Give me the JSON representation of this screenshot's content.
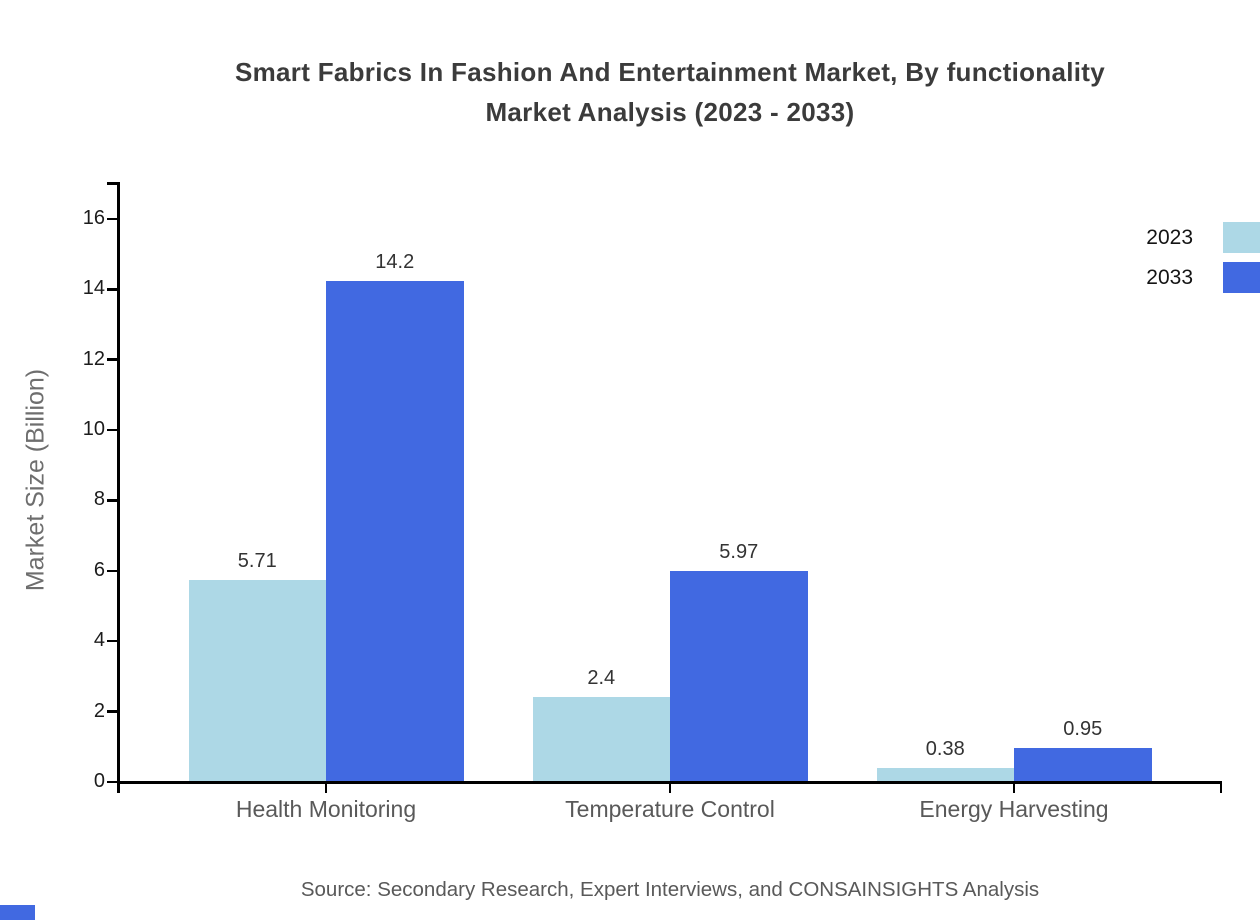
{
  "title": {
    "line1": "Smart Fabrics In Fashion And Entertainment Market, By functionality",
    "line2": "Market Analysis (2023 - 2033)"
  },
  "chart_data": {
    "type": "bar",
    "categories": [
      "Health Monitoring",
      "Temperature Control",
      "Energy Harvesting"
    ],
    "series": [
      {
        "name": "2023",
        "color": "#add8e6",
        "values": [
          5.71,
          2.4,
          0.38
        ],
        "labels": [
          "5.71",
          "2.4",
          "0.38"
        ]
      },
      {
        "name": "2033",
        "color": "#4169e1",
        "values": [
          14.2,
          5.97,
          0.95
        ],
        "labels": [
          "14.2",
          "5.97",
          "0.95"
        ]
      }
    ],
    "ylabel": "Market Size (Billion)",
    "ylim": [
      0,
      17
    ],
    "yticks": [
      0,
      2,
      4,
      6,
      8,
      10,
      12,
      14,
      16
    ],
    "grid": false,
    "legend_position": "top-right"
  },
  "source": "Source: Secondary Research, Expert Interviews, and CONSAINSIGHTS Analysis",
  "colors": {
    "axis": "#000000",
    "series_2023": "#add8e6",
    "series_2033": "#4169e1",
    "brand": "#4169e1"
  }
}
